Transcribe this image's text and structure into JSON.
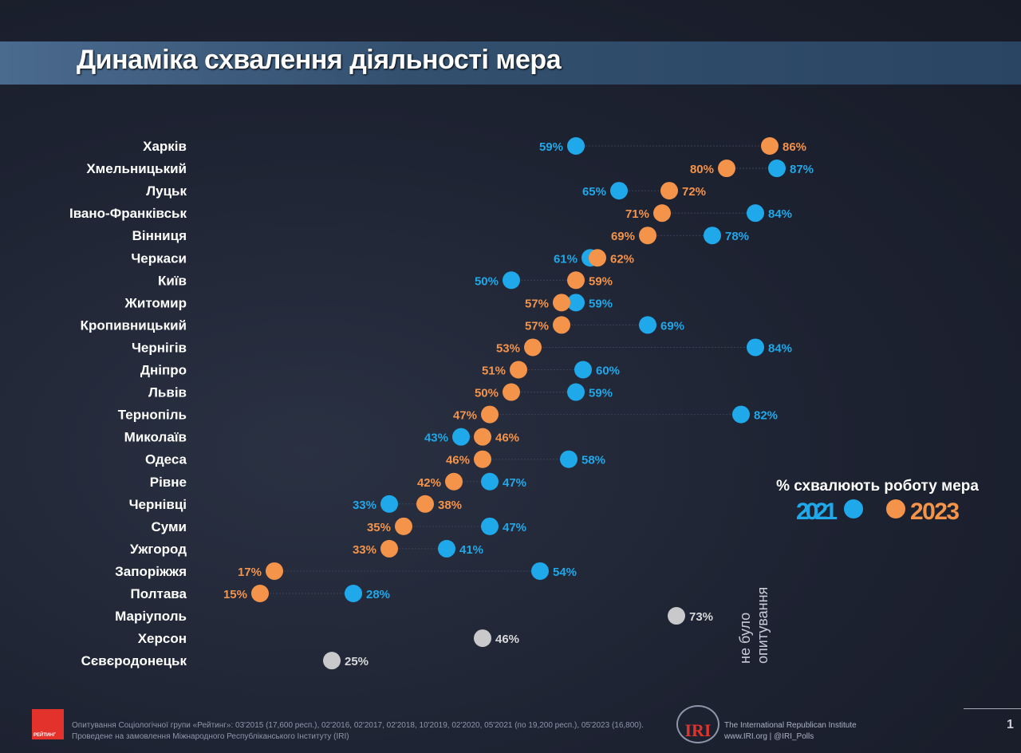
{
  "title": "Динаміка схвалення діяльності мера",
  "chart_data": {
    "type": "dot",
    "legend_title": "% схвалюють роботу мера",
    "legend_position": "right",
    "colors": {
      "2021": "#1fa8ea",
      "2023": "#f4934a",
      "no_survey": "#c9c9cc"
    },
    "series": [
      {
        "name": "2021",
        "values": [
          59,
          87,
          65,
          84,
          78,
          61,
          50,
          59,
          69,
          84,
          60,
          59,
          82,
          43,
          58,
          47,
          33,
          47,
          41,
          54,
          28,
          73,
          46,
          25
        ]
      },
      {
        "name": "2023",
        "values": [
          86,
          80,
          72,
          71,
          69,
          62,
          59,
          57,
          57,
          53,
          51,
          50,
          47,
          46,
          46,
          42,
          38,
          35,
          33,
          17,
          15,
          null,
          null,
          null
        ]
      }
    ],
    "categories": [
      "Харків",
      "Хмельницький",
      "Луцьк",
      "Івано-Франківськ",
      "Вінниця",
      "Черкаси",
      "Київ",
      "Житомир",
      "Кропивницький",
      "Чернігів",
      "Дніпро",
      "Львів",
      "Тернопіль",
      "Миколаїв",
      "Одеса",
      "Рівне",
      "Чернівці",
      "Суми",
      "Ужгород",
      "Запоріжжя",
      "Полтава",
      "Маріуполь",
      "Херсон",
      "Сєвєродонецьк"
    ],
    "no_survey_cities": [
      "Маріуполь",
      "Херсон",
      "Сєвєродонецьк"
    ],
    "annotation": "не було опитування",
    "value_suffix": "%"
  },
  "footer": {
    "logo_text": "РЕЙТИНГ",
    "source_line1": "Опитування Соціологічної групи «Рейтинг»: 03'2015 (17,600 респ.), 02'2016, 02'2017, 02'2018, 10'2019, 02'2020, 05'2021 (по 19,200 респ.), 05'2023 (16,800).",
    "source_line2": "Проведене на замовлення Міжнародного Республіканського Інституту (IRI)",
    "iri_logo": "IRI",
    "iri_name": "The International Republican Institute",
    "iri_links": "www.IRI.org | @IRI_Polls",
    "page_number": "1"
  }
}
